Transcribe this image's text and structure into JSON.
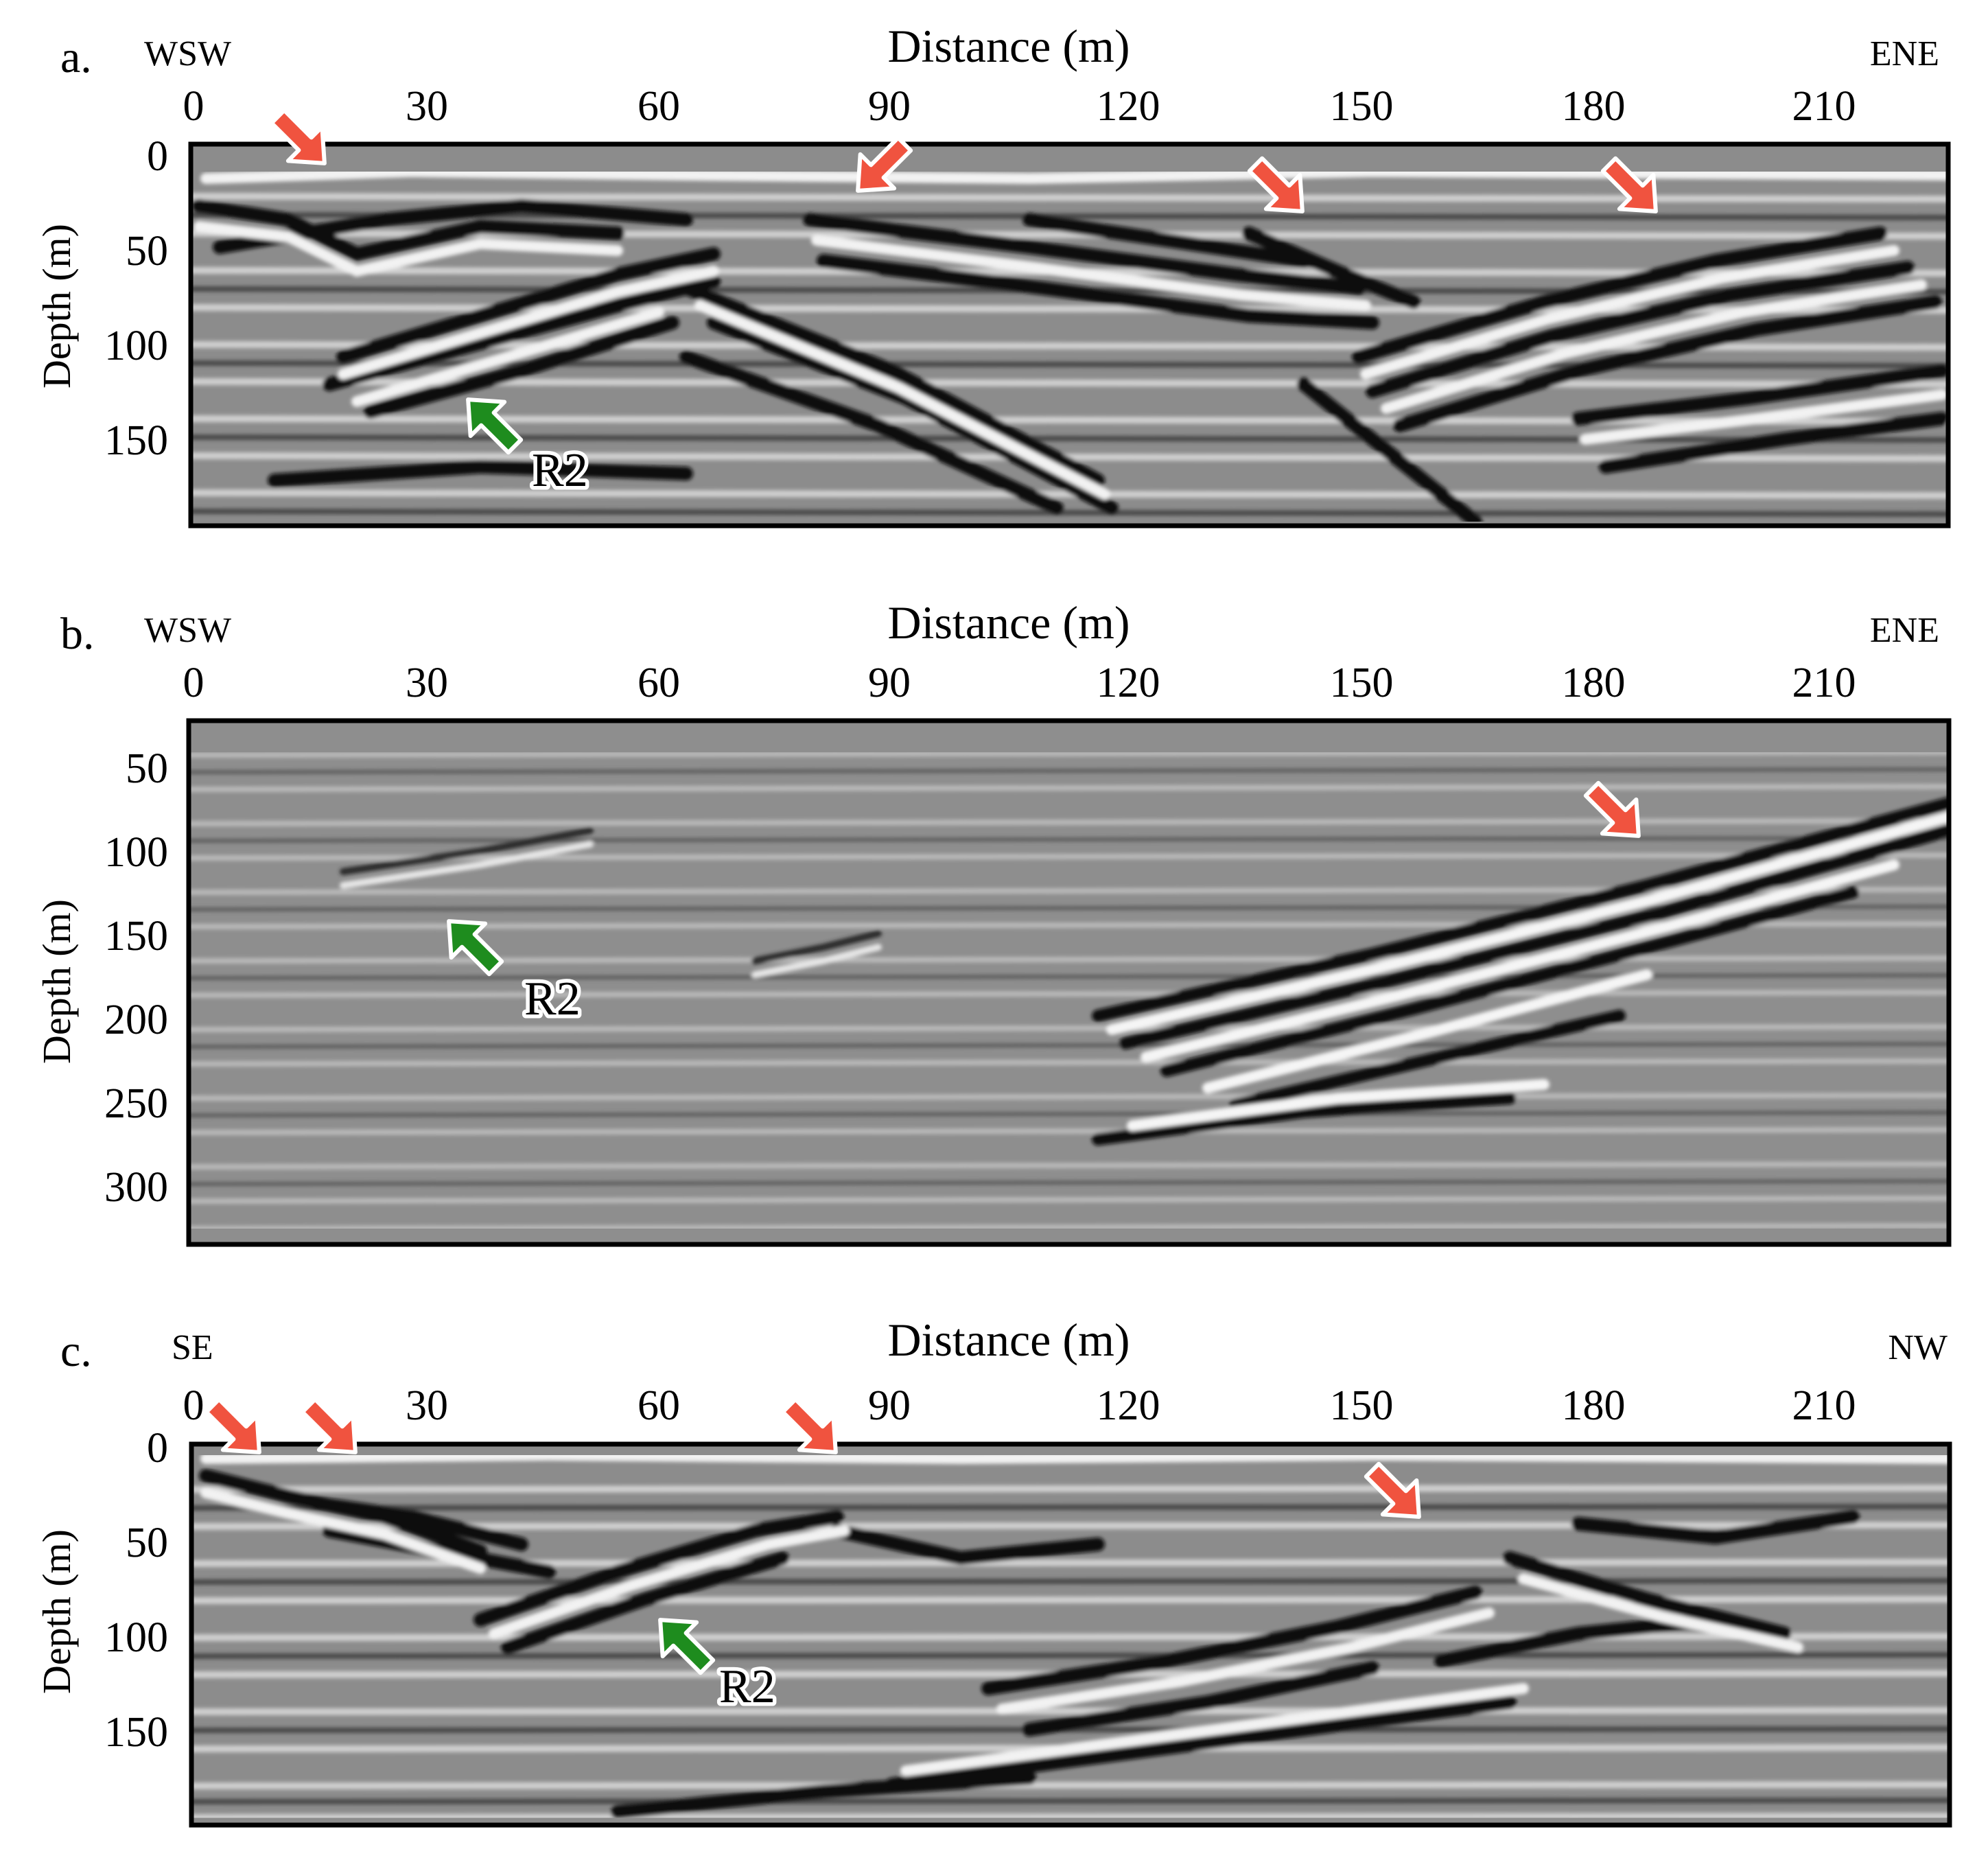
{
  "panels": [
    {
      "letter": "a.",
      "dir_left": "WSW",
      "dir_right": "ENE",
      "title": "Distance (m)",
      "x_ticks": [
        "0",
        "30",
        "60",
        "90",
        "120",
        "150",
        "180",
        "210"
      ],
      "ylabel": "Depth (m)",
      "y_ticks": [
        "0",
        "50",
        "100",
        "150"
      ],
      "annotation": "R2",
      "red_arrows": 4,
      "green_arrows": 1
    },
    {
      "letter": "b.",
      "dir_left": "WSW",
      "dir_right": "ENE",
      "title": "Distance (m)",
      "x_ticks": [
        "0",
        "30",
        "60",
        "90",
        "120",
        "150",
        "180",
        "210"
      ],
      "ylabel": "Depth (m)",
      "y_ticks": [
        "50",
        "100",
        "150",
        "200",
        "250",
        "300"
      ],
      "annotation": "R2",
      "red_arrows": 1,
      "green_arrows": 1
    },
    {
      "letter": "c.",
      "dir_left": "SE",
      "dir_right": "NW",
      "title": "Distance (m)",
      "x_ticks": [
        "0",
        "30",
        "60",
        "90",
        "120",
        "150",
        "180",
        "210"
      ],
      "ylabel": "Depth (m)",
      "y_ticks": [
        "0",
        "50",
        "100",
        "150"
      ],
      "annotation": "R2",
      "red_arrows": 4,
      "green_arrows": 1
    }
  ],
  "colors": {
    "red_arrow": "#f0533f",
    "green_arrow": "#1e8c1e",
    "section_background": "#8c8c8c"
  }
}
